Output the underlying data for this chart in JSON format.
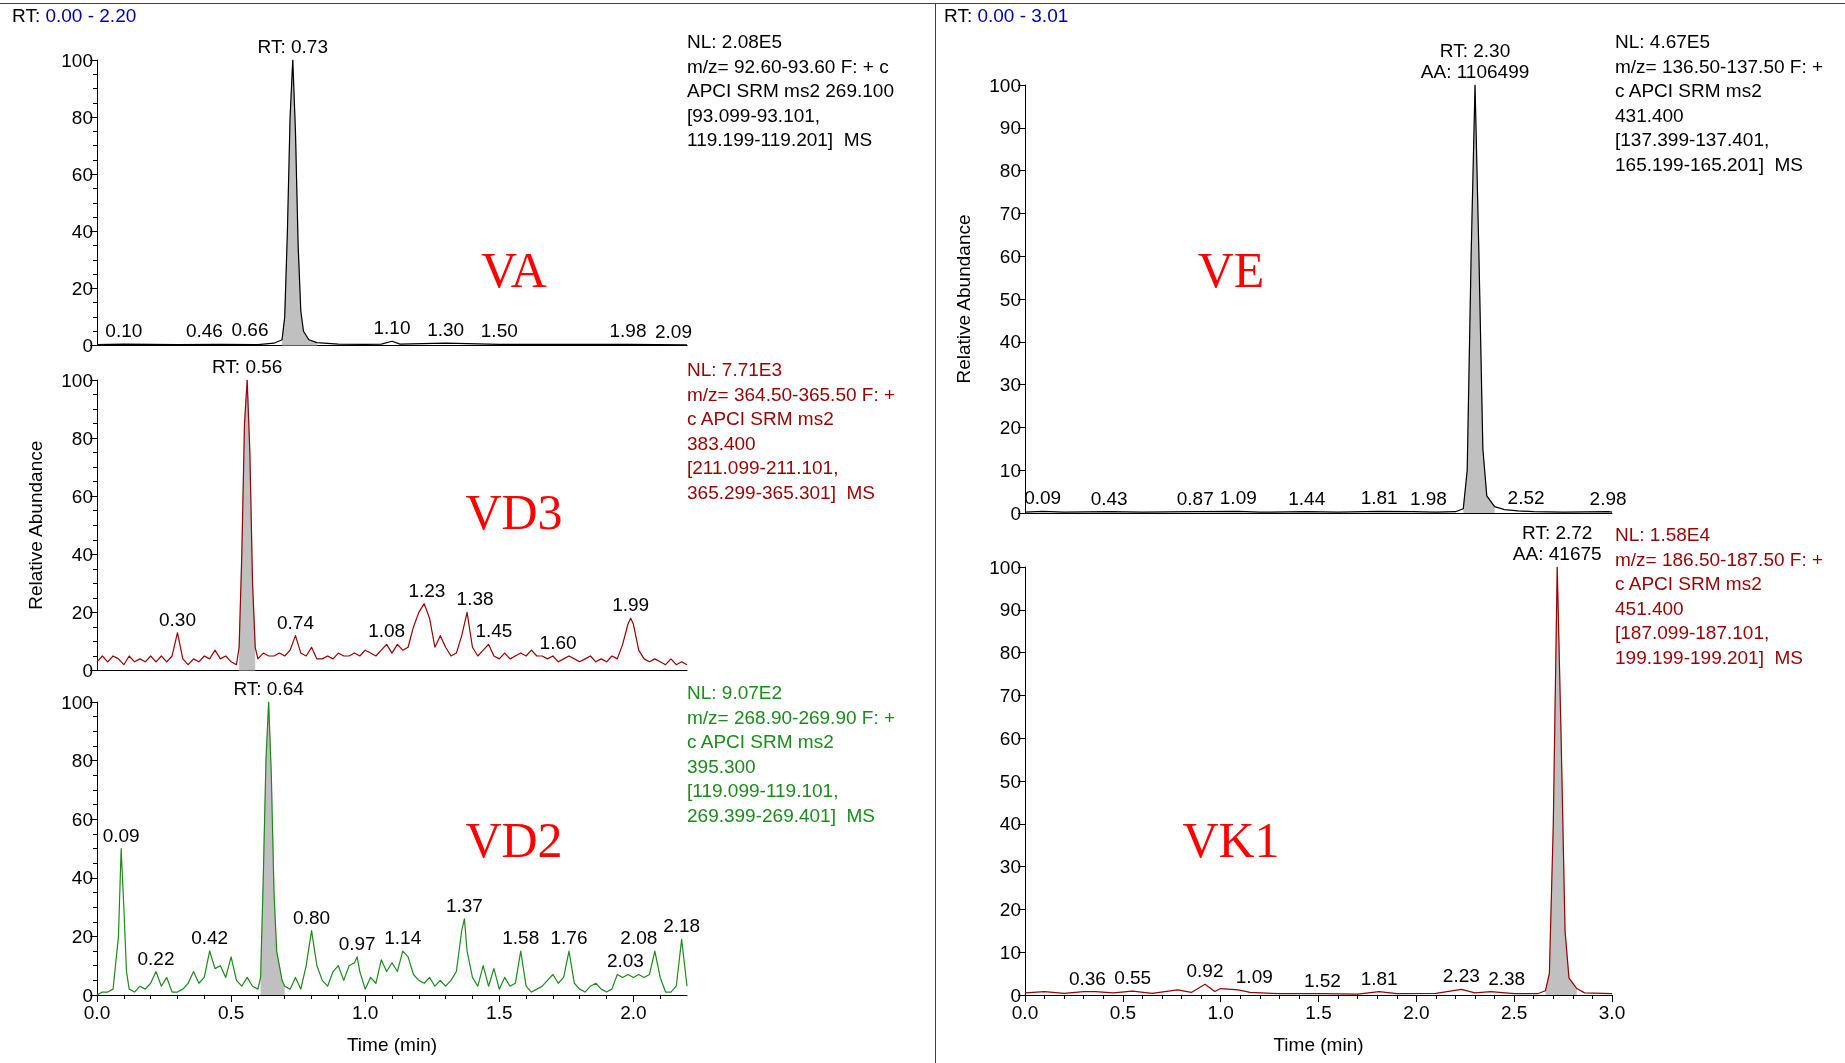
{
  "chart_data": [
    {
      "type": "line",
      "title": "VA",
      "subtitle": "RT: 0.00 - 2.20",
      "xlim": [
        0,
        2.2
      ],
      "ylim": [
        0,
        100
      ],
      "yticks": [
        0,
        20,
        40,
        60,
        80,
        100
      ],
      "tick_labels": "y",
      "series": [
        {
          "color": "#000000",
          "x": [
            0,
            0.1,
            0.3,
            0.46,
            0.6,
            0.66,
            0.69,
            0.7,
            0.71,
            0.72,
            0.73,
            0.74,
            0.75,
            0.76,
            0.77,
            0.79,
            0.82,
            0.9,
            1.0,
            1.06,
            1.1,
            1.13,
            1.3,
            1.5,
            1.98,
            2.09,
            2.2
          ],
          "values": [
            0.3,
            0.5,
            0.3,
            0.4,
            0.3,
            0.8,
            2,
            10,
            40,
            80,
            100,
            75,
            35,
            12,
            5,
            2,
            1,
            0.5,
            0.4,
            0.5,
            1.5,
            0.5,
            0.8,
            0.4,
            0.4,
            0.3,
            0.2
          ]
        },
        {
          "type": "area",
          "color": "#c0c0c0",
          "x": [
            0.69,
            0.7,
            0.71,
            0.72,
            0.73,
            0.74,
            0.75,
            0.76,
            0.77,
            0.79,
            0.82
          ],
          "values": [
            2,
            10,
            40,
            80,
            100,
            75,
            35,
            12,
            5,
            2,
            1
          ]
        }
      ],
      "annotations": [
        "NL: 2.08E5",
        "m/z= 92.60-93.60 F: + c",
        "APCI SRM ms2 269.100",
        "[93.099-93.101,",
        "119.199-119.201]  MS",
        {
          "text": "RT: 0.73",
          "x": 0.73,
          "y": 100
        },
        {
          "text": "0.10",
          "x": 0.1,
          "y": 0.5
        },
        {
          "text": "0.46",
          "x": 0.46,
          "y": 0.4
        },
        {
          "text": "0.66",
          "x": 0.66,
          "y": 0.8
        },
        {
          "text": "1.10",
          "x": 1.1,
          "y": 1.5
        },
        {
          "text": "1.30",
          "x": 1.3,
          "y": 0.8
        },
        {
          "text": "1.50",
          "x": 1.5,
          "y": 0.4
        },
        {
          "text": "1.98",
          "x": 1.98,
          "y": 0.4
        },
        {
          "text": "2.09",
          "x": 2.09,
          "y": 0.3
        }
      ]
    },
    {
      "type": "line",
      "title": "VD3",
      "ylabel": "Relative Abundance",
      "xlim": [
        0,
        2.2
      ],
      "ylim": [
        0,
        100
      ],
      "yticks": [
        0,
        20,
        40,
        60,
        80,
        100
      ],
      "tick_labels": "y",
      "series": [
        {
          "color": "#990000",
          "x": [
            0,
            0.02,
            0.04,
            0.06,
            0.08,
            0.1,
            0.12,
            0.14,
            0.16,
            0.18,
            0.2,
            0.22,
            0.24,
            0.26,
            0.28,
            0.3,
            0.32,
            0.34,
            0.36,
            0.38,
            0.4,
            0.42,
            0.44,
            0.46,
            0.48,
            0.5,
            0.52,
            0.53,
            0.54,
            0.55,
            0.56,
            0.57,
            0.58,
            0.59,
            0.6,
            0.62,
            0.64,
            0.66,
            0.68,
            0.7,
            0.72,
            0.74,
            0.76,
            0.78,
            0.8,
            0.82,
            0.84,
            0.86,
            0.88,
            0.9,
            0.92,
            0.94,
            0.96,
            0.98,
            1.0,
            1.02,
            1.04,
            1.06,
            1.08,
            1.1,
            1.12,
            1.14,
            1.16,
            1.18,
            1.2,
            1.22,
            1.24,
            1.26,
            1.28,
            1.3,
            1.32,
            1.34,
            1.36,
            1.38,
            1.4,
            1.42,
            1.44,
            1.46,
            1.48,
            1.5,
            1.52,
            1.54,
            1.56,
            1.58,
            1.6,
            1.62,
            1.64,
            1.66,
            1.68,
            1.7,
            1.72,
            1.74,
            1.76,
            1.78,
            1.8,
            1.82,
            1.84,
            1.86,
            1.88,
            1.9,
            1.92,
            1.94,
            1.96,
            1.98,
            1.99,
            2.0,
            2.02,
            2.04,
            2.06,
            2.08,
            2.1,
            2.12,
            2.14,
            2.16,
            2.18,
            2.2
          ],
          "values": [
            3,
            5,
            3,
            5,
            4,
            2,
            5,
            3,
            4,
            3,
            5,
            3,
            5,
            3,
            5,
            13,
            4,
            2,
            4,
            3,
            5,
            4,
            7,
            4,
            5,
            3,
            2,
            8,
            40,
            85,
            100,
            75,
            30,
            8,
            4,
            6,
            5,
            5,
            6,
            5,
            7,
            12,
            6,
            5,
            8,
            4,
            4,
            5,
            4,
            6,
            5,
            5,
            6,
            5,
            7,
            6,
            5,
            7,
            9,
            6,
            9,
            7,
            8,
            15,
            20,
            23,
            18,
            8,
            12,
            8,
            5,
            6,
            12,
            20,
            8,
            5,
            7,
            9,
            5,
            4,
            6,
            4,
            5,
            6,
            5,
            7,
            5,
            5,
            4,
            5,
            3,
            4,
            5,
            4,
            3,
            4,
            5,
            3,
            4,
            3,
            5,
            4,
            9,
            16,
            18,
            16,
            7,
            4,
            3,
            4,
            3,
            2,
            4,
            2,
            3,
            2
          ]
        },
        {
          "type": "area",
          "color": "#c0c0c0",
          "x": [
            0.53,
            0.54,
            0.55,
            0.56,
            0.57,
            0.58,
            0.59
          ],
          "values": [
            8,
            40,
            85,
            100,
            75,
            30,
            8
          ]
        }
      ],
      "annotations": [
        "NL: 7.71E3",
        "m/z= 364.50-365.50 F: +",
        "c APCI SRM ms2",
        "383.400",
        "[211.099-211.101,",
        "365.299-365.301]  MS",
        {
          "text": "RT: 0.56",
          "x": 0.56,
          "y": 100
        },
        {
          "text": "0.30",
          "x": 0.3,
          "y": 13
        },
        {
          "text": "0.74",
          "x": 0.74,
          "y": 12
        },
        {
          "text": "1.08",
          "x": 1.08,
          "y": 9
        },
        {
          "text": "1.23",
          "x": 1.23,
          "y": 23
        },
        {
          "text": "1.38",
          "x": 1.38,
          "y": 20
        },
        {
          "text": "1.45",
          "x": 1.45,
          "y": 9
        },
        {
          "text": "1.60",
          "x": 1.6,
          "y": 5
        },
        {
          "text": "1.99",
          "x": 1.99,
          "y": 18
        }
      ]
    },
    {
      "type": "line",
      "title": "VD2",
      "xlabel": "Time (min)",
      "xlim": [
        0,
        2.2
      ],
      "xticks": [
        {
          "value": 0,
          "label": "0.0"
        },
        {
          "value": 0.5,
          "label": "0.5"
        },
        {
          "value": 1,
          "label": "1.0"
        },
        {
          "value": 1.5,
          "label": "1.5"
        },
        {
          "value": 2,
          "label": "2.0"
        }
      ],
      "ylim": [
        0,
        100
      ],
      "yticks": [
        0,
        20,
        40,
        60,
        80,
        100
      ],
      "series": [
        {
          "color": "#1a8c1a",
          "x": [
            0,
            0.02,
            0.04,
            0.06,
            0.08,
            0.09,
            0.1,
            0.11,
            0.12,
            0.14,
            0.16,
            0.18,
            0.2,
            0.22,
            0.24,
            0.26,
            0.28,
            0.3,
            0.32,
            0.34,
            0.36,
            0.38,
            0.4,
            0.42,
            0.44,
            0.46,
            0.48,
            0.5,
            0.52,
            0.54,
            0.56,
            0.58,
            0.6,
            0.61,
            0.62,
            0.63,
            0.64,
            0.65,
            0.66,
            0.67,
            0.68,
            0.69,
            0.7,
            0.72,
            0.74,
            0.76,
            0.78,
            0.8,
            0.82,
            0.84,
            0.86,
            0.88,
            0.9,
            0.92,
            0.94,
            0.96,
            0.97,
            0.98,
            1.0,
            1.02,
            1.04,
            1.06,
            1.08,
            1.1,
            1.12,
            1.14,
            1.16,
            1.18,
            1.2,
            1.22,
            1.24,
            1.26,
            1.28,
            1.3,
            1.32,
            1.34,
            1.36,
            1.37,
            1.38,
            1.4,
            1.42,
            1.44,
            1.46,
            1.48,
            1.5,
            1.52,
            1.54,
            1.56,
            1.58,
            1.6,
            1.62,
            1.64,
            1.66,
            1.68,
            1.7,
            1.72,
            1.74,
            1.76,
            1.78,
            1.8,
            1.82,
            1.84,
            1.86,
            1.88,
            1.9,
            1.92,
            1.94,
            1.96,
            1.98,
            2.0,
            2.02,
            2.04,
            2.06,
            2.08,
            2.1,
            2.12,
            2.14,
            2.16,
            2.18,
            2.2
          ],
          "values": [
            0,
            1,
            1,
            2,
            20,
            50,
            30,
            8,
            2,
            1,
            3,
            2,
            4,
            8,
            3,
            6,
            1,
            1,
            2,
            4,
            8,
            4,
            6,
            15,
            9,
            10,
            6,
            13,
            5,
            3,
            6,
            3,
            2,
            6,
            40,
            80,
            100,
            75,
            35,
            15,
            10,
            5,
            3,
            2,
            6,
            2,
            10,
            22,
            10,
            5,
            3,
            8,
            10,
            5,
            10,
            11,
            13,
            8,
            2,
            6,
            4,
            12,
            8,
            11,
            8,
            15,
            13,
            7,
            5,
            4,
            6,
            3,
            5,
            3,
            5,
            8,
            22,
            26,
            15,
            6,
            3,
            10,
            3,
            9,
            2,
            6,
            3,
            4,
            15,
            3,
            1,
            2,
            3,
            5,
            7,
            4,
            6,
            15,
            4,
            2,
            1,
            3,
            4,
            2,
            1,
            2,
            7,
            6,
            7,
            6,
            7,
            6,
            7,
            15,
            6,
            1,
            1,
            3,
            19,
            3
          ]
        },
        {
          "type": "area",
          "color": "#c0c0c0",
          "x": [
            0.61,
            0.62,
            0.63,
            0.64,
            0.65,
            0.66,
            0.67,
            0.68,
            0.69,
            0.7
          ],
          "values": [
            6,
            40,
            80,
            100,
            75,
            35,
            15,
            10,
            5,
            3
          ]
        }
      ],
      "annotations": [
        "NL: 9.07E2",
        "m/z= 268.90-269.90 F: +",
        "c APCI SRM ms2",
        "395.300",
        "[119.099-119.101,",
        "269.399-269.401]  MS",
        {
          "text": "RT: 0.64",
          "x": 0.64,
          "y": 100
        },
        {
          "text": "0.09",
          "x": 0.09,
          "y": 50
        },
        {
          "text": "0.22",
          "x": 0.22,
          "y": 8
        },
        {
          "text": "0.42",
          "x": 0.42,
          "y": 15
        },
        {
          "text": "0.80",
          "x": 0.8,
          "y": 22
        },
        {
          "text": "0.97",
          "x": 0.97,
          "y": 13
        },
        {
          "text": "1.14",
          "x": 1.14,
          "y": 15
        },
        {
          "text": "1.37",
          "x": 1.37,
          "y": 26
        },
        {
          "text": "1.58",
          "x": 1.58,
          "y": 15
        },
        {
          "text": "1.76",
          "x": 1.76,
          "y": 15
        },
        {
          "text": "2.03",
          "x": 2.03,
          "y": 7
        },
        {
          "text": "2.08",
          "x": 2.08,
          "y": 15
        },
        {
          "text": "2.18",
          "x": 2.18,
          "y": 19
        }
      ]
    },
    {
      "type": "line",
      "title": "VE",
      "subtitle": "RT: 0.00 - 3.01",
      "ylabel": "Relative Abundance",
      "xlim": [
        0,
        3
      ],
      "ylim": [
        0,
        100
      ],
      "yticks": [
        0,
        10,
        20,
        30,
        40,
        50,
        60,
        70,
        80,
        90,
        100
      ],
      "tick_labels": "y",
      "series": [
        {
          "color": "#000000",
          "x": [
            0,
            0.09,
            0.2,
            0.43,
            0.6,
            0.87,
            1.09,
            1.2,
            1.44,
            1.6,
            1.81,
            1.98,
            2.1,
            2.2,
            2.24,
            2.26,
            2.28,
            2.3,
            2.32,
            2.34,
            2.36,
            2.4,
            2.45,
            2.52,
            2.6,
            2.75,
            2.98,
            3.0
          ],
          "values": [
            0.2,
            0.4,
            0.2,
            0.3,
            0.2,
            0.3,
            0.4,
            0.2,
            0.3,
            0.2,
            0.4,
            0.3,
            0.2,
            0.3,
            1,
            10,
            60,
            100,
            60,
            15,
            4,
            1.5,
            0.8,
            0.5,
            0.3,
            0.2,
            0.3,
            0.2
          ]
        },
        {
          "type": "area",
          "color": "#c0c0c0",
          "x": [
            2.24,
            2.26,
            2.28,
            2.3,
            2.32,
            2.34,
            2.36,
            2.4
          ],
          "values": [
            1,
            10,
            60,
            100,
            60,
            15,
            4,
            1.5
          ]
        }
      ],
      "annotations": [
        "NL: 4.67E5",
        "m/z= 136.50-137.50 F: +",
        "c APCI SRM ms2",
        "431.400",
        "[137.399-137.401,",
        "165.199-165.201]  MS",
        {
          "text": "RT: 2.30\nAA: 1106499",
          "x": 2.3,
          "y": 100
        },
        {
          "text": "0.09",
          "x": 0.09,
          "y": 0.4
        },
        {
          "text": "0.43",
          "x": 0.43,
          "y": 0.3
        },
        {
          "text": "0.87",
          "x": 0.87,
          "y": 0.3
        },
        {
          "text": "1.09",
          "x": 1.09,
          "y": 0.4
        },
        {
          "text": "1.44",
          "x": 1.44,
          "y": 0.3
        },
        {
          "text": "1.81",
          "x": 1.81,
          "y": 0.4
        },
        {
          "text": "1.98",
          "x": 1.98,
          "y": 0.3
        },
        {
          "text": "2.52",
          "x": 2.52,
          "y": 0.5
        },
        {
          "text": "2.98",
          "x": 2.98,
          "y": 0.3
        }
      ]
    },
    {
      "type": "line",
      "title": "VK1",
      "xlabel": "Time (min)",
      "xlim": [
        0,
        3
      ],
      "xticks": [
        {
          "value": 0,
          "label": "0.0"
        },
        {
          "value": 0.5,
          "label": "0.5"
        },
        {
          "value": 1,
          "label": "1.0"
        },
        {
          "value": 1.5,
          "label": "1.5"
        },
        {
          "value": 2,
          "label": "2.0"
        },
        {
          "value": 2.5,
          "label": "2.5"
        },
        {
          "value": 3,
          "label": "3.0"
        }
      ],
      "ylim": [
        0,
        100
      ],
      "yticks": [
        0,
        10,
        20,
        30,
        40,
        50,
        60,
        70,
        80,
        90,
        100
      ],
      "series": [
        {
          "color": "#990000",
          "x": [
            0,
            0.1,
            0.2,
            0.3,
            0.36,
            0.45,
            0.55,
            0.65,
            0.78,
            0.85,
            0.92,
            0.97,
            1.0,
            1.09,
            1.15,
            1.3,
            1.52,
            1.7,
            1.81,
            1.9,
            2.1,
            2.23,
            2.3,
            2.38,
            2.5,
            2.62,
            2.66,
            2.68,
            2.7,
            2.72,
            2.74,
            2.76,
            2.78,
            2.82,
            2.86,
            2.95,
            3.0
          ],
          "values": [
            0.5,
            0.8,
            0.4,
            0.8,
            0.8,
            0.5,
            0.9,
            0.4,
            1.2,
            0.6,
            2.5,
            0.8,
            1.5,
            1.2,
            0.6,
            0.3,
            0.3,
            0.2,
            0.8,
            0.3,
            0.4,
            1.3,
            0.5,
            0.8,
            0.3,
            0.3,
            1,
            5,
            40,
            100,
            60,
            15,
            4,
            1.5,
            0.5,
            0.4,
            0.3
          ]
        },
        {
          "type": "area",
          "color": "#c0c0c0",
          "x": [
            2.66,
            2.68,
            2.7,
            2.72,
            2.74,
            2.76,
            2.78,
            2.82
          ],
          "values": [
            1,
            5,
            40,
            100,
            60,
            15,
            4,
            1.5
          ]
        }
      ],
      "annotations": [
        "NL: 1.58E4",
        "m/z= 186.50-187.50 F: +",
        "c APCI SRM ms2",
        "451.400",
        "[187.099-187.101,",
        "199.199-199.201]  MS",
        {
          "text": "RT: 2.72\nAA: 41675",
          "x": 2.72,
          "y": 100
        },
        {
          "text": "0.36",
          "x": 0.36,
          "y": 0.8
        },
        {
          "text": "0.55",
          "x": 0.55,
          "y": 0.9
        },
        {
          "text": "0.92",
          "x": 0.92,
          "y": 2.5
        },
        {
          "text": "1.09",
          "x": 1.09,
          "y": 1.2
        },
        {
          "text": "1.52",
          "x": 1.52,
          "y": 0.3
        },
        {
          "text": "1.81",
          "x": 1.81,
          "y": 0.8
        },
        {
          "text": "2.23",
          "x": 2.23,
          "y": 1.3
        },
        {
          "text": "2.38",
          "x": 2.38,
          "y": 0.8
        }
      ]
    }
  ]
}
